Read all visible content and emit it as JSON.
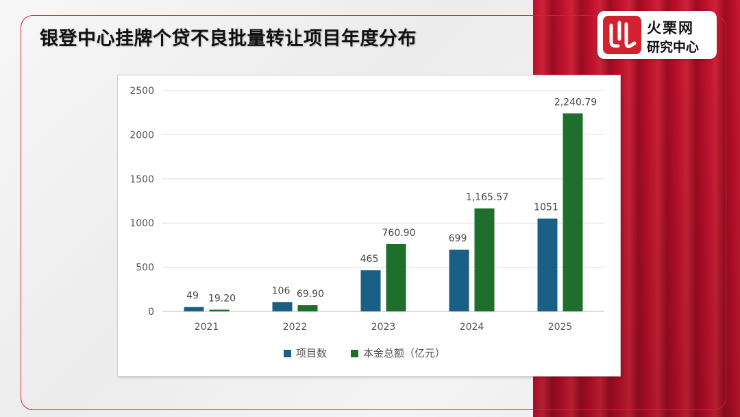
{
  "header": {
    "title": "银登中心挂牌个贷不良批量转让项目年度分布"
  },
  "logo": {
    "line1": "火栗网",
    "line2": "研究中心"
  },
  "colors": {
    "series1": "#1a5f86",
    "series2": "#1e6e2c",
    "accent": "#d4202f"
  },
  "chart_data": {
    "type": "bar",
    "categories": [
      "2021",
      "2022",
      "2023",
      "2024",
      "2025"
    ],
    "series": [
      {
        "name": "项目数",
        "values": [
          49,
          106,
          465,
          699,
          1051
        ],
        "labels": [
          "49",
          "106",
          "465",
          "699",
          "1051"
        ],
        "color": "#1a5f86"
      },
      {
        "name": "本金总额（亿元）",
        "values": [
          19.2,
          69.9,
          760.9,
          1165.57,
          2240.79
        ],
        "labels": [
          "19.20",
          "69.90",
          "760.90",
          "1,165.57",
          "2,240.79"
        ],
        "color": "#1e6e2c"
      }
    ],
    "yticks": [
      "0",
      "500",
      "1000",
      "1500",
      "2000",
      "2500"
    ],
    "ylim": [
      0,
      2500
    ],
    "grid": true,
    "legend_position": "bottom"
  }
}
